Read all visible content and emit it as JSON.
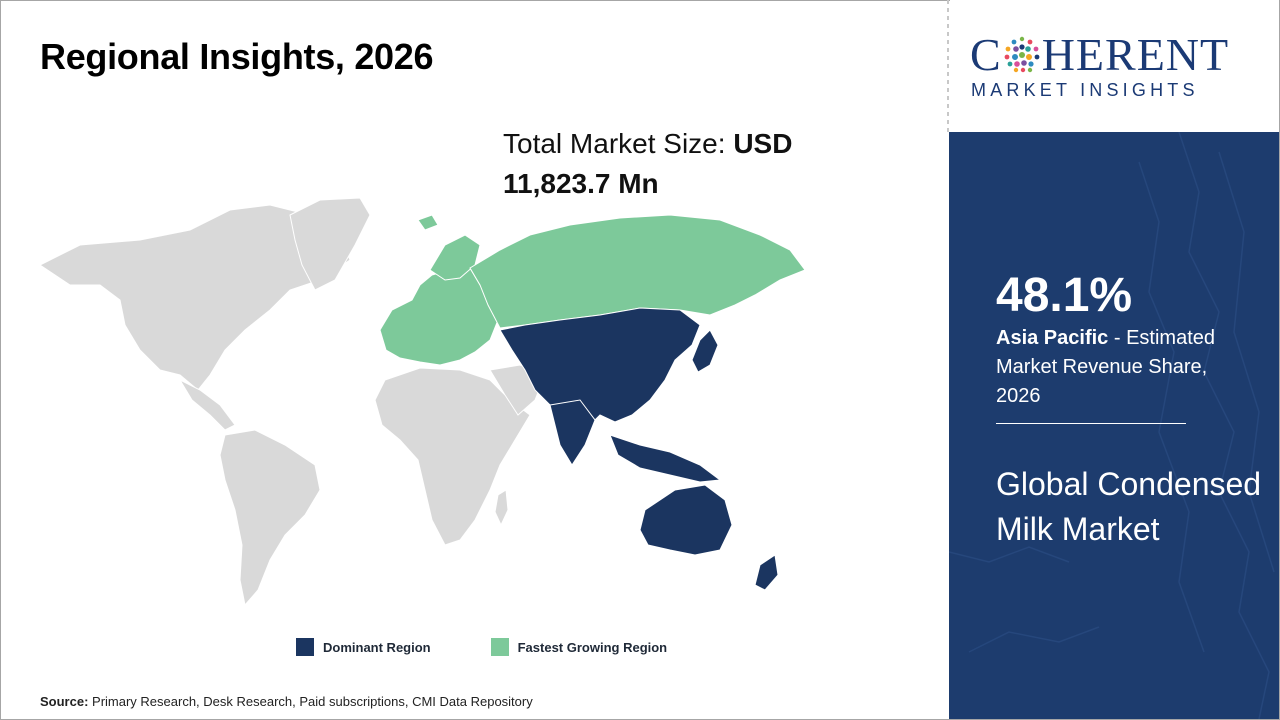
{
  "page": {
    "title": "Regional Insights, 2026"
  },
  "market_size": {
    "label": "Total Market Size: ",
    "currency": "USD",
    "value": "11,823.7 Mn"
  },
  "legend": {
    "dominant": {
      "label": "Dominant Region",
      "color": "#1b3560"
    },
    "fastest": {
      "label": "Fastest Growing Region",
      "color": "#7dc99a"
    }
  },
  "map_colors": {
    "other": "#d9d9d9",
    "dominant": "#1b3560",
    "fastest": "#7dc99a"
  },
  "source": {
    "label": "Source:",
    "text": " Primary Research, Desk Research, Paid subscriptions, CMI Data Repository"
  },
  "logo": {
    "main_prefix": "C",
    "main_suffix": "HERENT",
    "sub": "MARKET INSIGHTS"
  },
  "side_panel": {
    "share_value": "48.1%",
    "region": "Asia Pacific",
    "share_desc": " - Estimated Market Revenue Share, 2026",
    "market_name": "Global Condensed Milk Market",
    "bg_color": "#1d3c6e"
  }
}
